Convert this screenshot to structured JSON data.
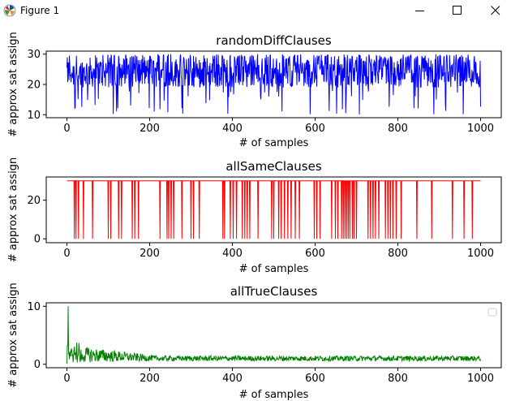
{
  "window": {
    "title": "Figure 1",
    "controls": {
      "minimize": "minimize",
      "maximize": "maximize",
      "close": "close"
    }
  },
  "colors": {
    "series1": "#0000ff",
    "series2": "#ff0000",
    "series3": "#008000",
    "axes": "#000000"
  },
  "chart_data": [
    {
      "type": "line",
      "title": "randomDiffClauses",
      "xlabel": "# of samples",
      "ylabel": "# approx sat assign",
      "xlim": [
        -50,
        1050
      ],
      "ylim": [
        9,
        31
      ],
      "xticks": [
        0,
        200,
        400,
        600,
        800,
        1000
      ],
      "yticks": [
        10,
        20,
        30
      ],
      "grid": false,
      "series": [
        {
          "color": "#0000ff",
          "x_range": [
            0,
            1000
          ],
          "n_points": 1000,
          "typical_range": [
            18,
            30
          ],
          "mean": 24,
          "min": 10,
          "max": 30
        }
      ]
    },
    {
      "type": "line",
      "title": "allSameClauses",
      "xlabel": "# of samples",
      "ylabel": "# approx sat assign",
      "xlim": [
        -50,
        1050
      ],
      "ylim": [
        -2,
        32
      ],
      "xticks": [
        0,
        200,
        400,
        600,
        800,
        1000
      ],
      "yticks": [
        0,
        20
      ],
      "grid": false,
      "series": [
        {
          "color": "#ff0000",
          "x_range": [
            0,
            1000
          ],
          "baseline": 30,
          "drop_value": 0,
          "drop_positions": [
            18,
            22,
            28,
            40,
            62,
            100,
            106,
            125,
            132,
            158,
            164,
            173,
            225,
            242,
            246,
            252,
            258,
            278,
            300,
            306,
            320,
            377,
            381,
            395,
            402,
            410,
            424,
            430,
            436,
            442,
            462,
            495,
            500,
            512,
            518,
            526,
            534,
            542,
            552,
            562,
            598,
            604,
            612,
            640,
            649,
            655,
            664,
            668,
            672,
            676,
            680,
            684,
            690,
            694,
            700,
            728,
            734,
            740,
            746,
            754,
            770,
            776,
            782,
            788,
            796,
            808,
            846,
            882,
            932,
            960,
            980
          ]
        }
      ]
    },
    {
      "type": "line",
      "title": "allTrueClauses",
      "xlabel": "# of samples",
      "ylabel": "# approx sat assign",
      "xlim": [
        -50,
        1050
      ],
      "ylim": [
        -0.6,
        10.6
      ],
      "xticks": [
        0,
        200,
        400,
        600,
        800,
        1000
      ],
      "yticks": [
        0,
        10
      ],
      "grid": false,
      "legend": "top-right (empty)",
      "series": [
        {
          "color": "#008000",
          "x_range": [
            0,
            1000
          ],
          "first_value": 10,
          "settles_to": 1,
          "noise": [
            0.5,
            1.6
          ]
        }
      ]
    }
  ]
}
